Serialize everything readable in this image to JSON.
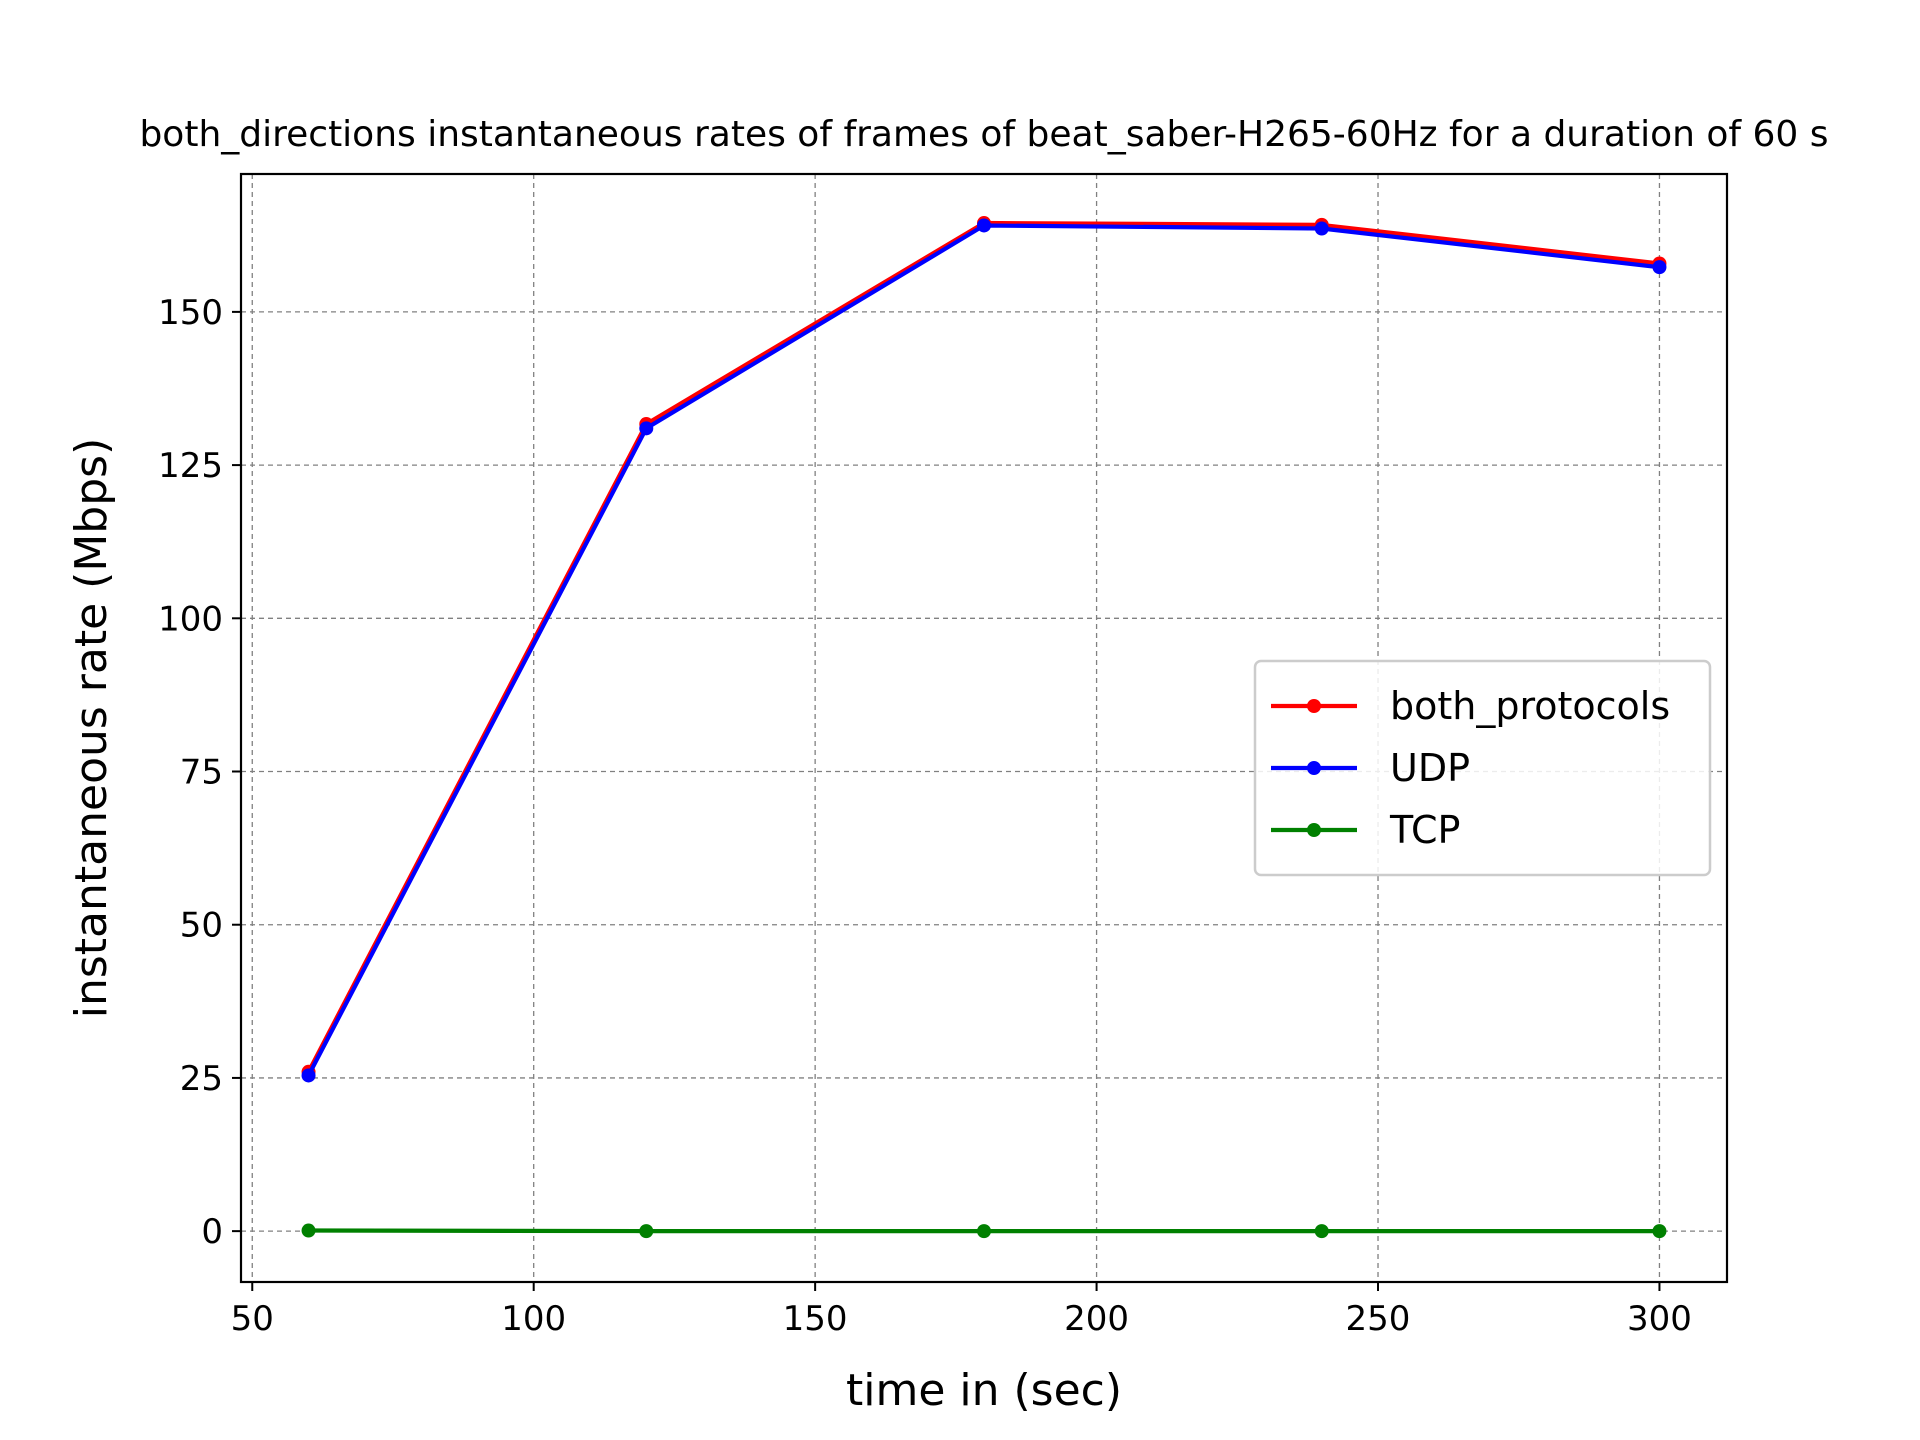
{
  "chart_data": {
    "type": "line",
    "title": "both_directions instantaneous rates of frames of beat_saber-H265-60Hz for a duration of 60 s",
    "xlabel": "time in (sec)",
    "ylabel": "instantaneous rate (Mbps)",
    "x": [
      60,
      120,
      180,
      240,
      300
    ],
    "xlim": [
      48,
      312
    ],
    "ylim": [
      -8.3,
      172.5
    ],
    "xticks": [
      50,
      100,
      150,
      200,
      250,
      300
    ],
    "yticks": [
      0,
      25,
      50,
      75,
      100,
      125,
      150
    ],
    "grid": true,
    "legend_position": "center-right",
    "series": [
      {
        "name": "both_protocols",
        "color": "#ff0000",
        "values": [
          26.0,
          131.7,
          164.5,
          164.2,
          157.9
        ]
      },
      {
        "name": "UDP",
        "color": "#0000ff",
        "values": [
          25.4,
          131.0,
          164.1,
          163.6,
          157.3
        ]
      },
      {
        "name": "TCP",
        "color": "#008000",
        "values": [
          0.1,
          0.0,
          0.0,
          0.0,
          0.0
        ]
      }
    ]
  }
}
